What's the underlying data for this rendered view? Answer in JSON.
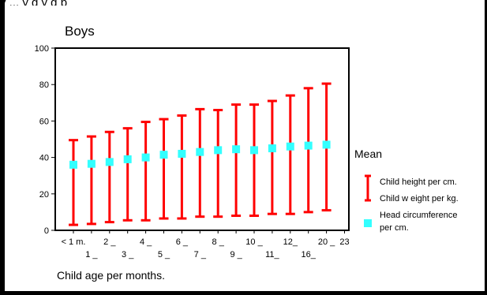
{
  "page": {
    "top_text": "y ... y g y g p"
  },
  "chart_data": {
    "type": "error-bar",
    "title": "Boys",
    "xlabel": "Child age per months.",
    "ylabel": "",
    "ylim": [
      0,
      100
    ],
    "yticks": [
      0,
      20,
      40,
      60,
      80,
      100
    ],
    "grid": false,
    "categories": [
      "< 1 m.",
      "1 _",
      "2 _",
      "3 _",
      "4 _",
      "5 _",
      "6 _",
      "7 _",
      "8 _",
      "9 _",
      "10 _",
      "11_",
      "12_",
      "16_",
      "20 _",
      "23"
    ],
    "category_label_rows": [
      0,
      1,
      0,
      1,
      0,
      1,
      0,
      1,
      0,
      1,
      0,
      1,
      0,
      1,
      0,
      0
    ],
    "series": [
      {
        "name": "Child height per cm.",
        "kind": "upper",
        "values": [
          49.5,
          51.5,
          54,
          56,
          59.5,
          61,
          63,
          66.5,
          66,
          69,
          69,
          71,
          74,
          78,
          80.5,
          null
        ]
      },
      {
        "name": "Child w eight per kg.",
        "kind": "lower",
        "values": [
          3,
          3.5,
          4.5,
          5.5,
          5.5,
          6.5,
          6.5,
          7.5,
          7.5,
          8,
          8,
          9,
          9,
          10,
          11,
          null
        ]
      },
      {
        "name": "Head circumference per cm.",
        "kind": "mean",
        "values": [
          36,
          36.5,
          37.5,
          39,
          40,
          41.5,
          42,
          43,
          44,
          44.5,
          44,
          45,
          46,
          46.5,
          47,
          null
        ]
      }
    ],
    "legend": {
      "title": "Mean",
      "position": "right",
      "items": [
        "Child height per cm.",
        "Child w eight per kg.",
        "Head circumference",
        "per cm."
      ]
    },
    "colors": {
      "bar": "#ff0000",
      "mean": "#33ffff",
      "axis": "#000000"
    }
  }
}
